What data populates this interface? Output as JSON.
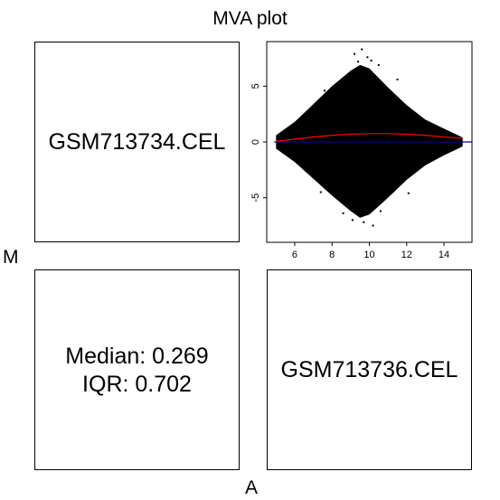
{
  "title": "MVA plot",
  "ylabel": "M",
  "xlabel": "A",
  "panels": {
    "top_left": "GSM713734.CEL",
    "bottom_right": "GSM713736.CEL",
    "bottom_left": {
      "median": "Median: 0.269",
      "iqr": "IQR: 0.702"
    }
  },
  "colors": {
    "points": "#000000",
    "loess": "#ff0000",
    "zero_line": "#00008b"
  },
  "chart_data": {
    "type": "scatter",
    "title": "MVA plot",
    "xlabel": "A",
    "ylabel": "M",
    "xlim": [
      4.5,
      15.5
    ],
    "ylim": [
      -9,
      9
    ],
    "xticks": [
      "6",
      "8",
      "10",
      "12",
      "14"
    ],
    "yticks": [
      "-5",
      "0",
      "5"
    ],
    "x_tick_values": [
      6,
      8,
      10,
      12,
      14
    ],
    "y_tick_values": [
      -5,
      0,
      5
    ],
    "envelope": {
      "x": [
        5.0,
        6.0,
        7.0,
        8.0,
        9.0,
        9.5,
        10.0,
        11.0,
        12.0,
        13.0,
        14.0,
        14.5,
        15.0
      ],
      "upper": [
        0.6,
        1.8,
        3.4,
        5.0,
        6.4,
        6.9,
        6.6,
        4.9,
        3.3,
        2.0,
        1.2,
        0.8,
        0.4
      ],
      "lower": [
        -0.6,
        -1.8,
        -3.3,
        -4.8,
        -6.2,
        -6.8,
        -6.5,
        -5.0,
        -3.4,
        -2.1,
        -1.2,
        -0.8,
        -0.4
      ]
    },
    "outliers": [
      [
        9.2,
        7.9
      ],
      [
        9.6,
        8.3
      ],
      [
        9.9,
        7.6
      ],
      [
        10.1,
        7.3
      ],
      [
        9.4,
        7.2
      ],
      [
        9.7,
        -7.2
      ],
      [
        10.2,
        -7.5
      ],
      [
        9.1,
        -7.0
      ],
      [
        8.6,
        -6.4
      ],
      [
        10.6,
        -6.2
      ],
      [
        11.5,
        5.6
      ],
      [
        12.1,
        -4.6
      ],
      [
        7.6,
        4.6
      ],
      [
        7.4,
        -4.5
      ],
      [
        10.5,
        6.9
      ]
    ],
    "loess": {
      "x": [
        5.0,
        6.0,
        7.0,
        8.0,
        9.0,
        10.0,
        11.0,
        12.0,
        13.0,
        14.0,
        15.0
      ],
      "y": [
        0.05,
        0.25,
        0.45,
        0.6,
        0.7,
        0.75,
        0.75,
        0.7,
        0.6,
        0.45,
        0.35
      ]
    },
    "zero_line": 0
  }
}
